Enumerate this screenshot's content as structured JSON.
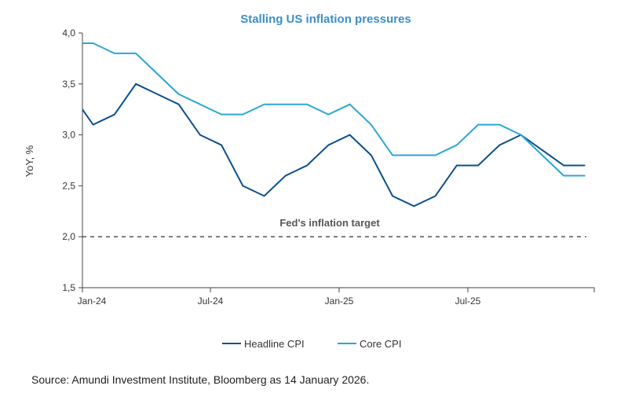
{
  "chart_data": {
    "type": "line",
    "title": "Stalling US inflation pressures",
    "ylabel": "YoY, %",
    "xlabel": "",
    "ylim": [
      1.5,
      4.0
    ],
    "yticks": [
      "1,5",
      "2,0",
      "2,5",
      "3,0",
      "3,5",
      "4,0"
    ],
    "xtick_labels": [
      "Jan-24",
      "Jul-24",
      "Jan-25",
      "Jul-25"
    ],
    "x": [
      "Dec-23",
      "Jan-24",
      "Feb-24",
      "Mar-24",
      "Apr-24",
      "May-24",
      "Jun-24",
      "Jul-24",
      "Aug-24",
      "Sep-24",
      "Oct-24",
      "Nov-24",
      "Dec-24",
      "Jan-25",
      "Feb-25",
      "Mar-25",
      "Apr-25",
      "May-25",
      "Jun-25",
      "Jul-25",
      "Aug-25",
      "Sep-25",
      "Oct-25",
      "Nov-25",
      "Dec-25"
    ],
    "series": [
      {
        "name": "Headline CPI",
        "color": "#0b4f8c",
        "values": [
          3.4,
          3.1,
          3.2,
          3.5,
          3.4,
          3.3,
          3.0,
          2.9,
          2.5,
          2.4,
          2.6,
          2.7,
          2.9,
          3.0,
          2.8,
          2.4,
          2.3,
          2.4,
          2.7,
          2.7,
          2.9,
          3.0,
          null,
          2.7,
          2.7
        ]
      },
      {
        "name": "Core CPI",
        "color": "#2aa6d6",
        "values": [
          3.9,
          3.9,
          3.8,
          3.8,
          3.6,
          3.4,
          3.3,
          3.2,
          3.2,
          3.3,
          3.3,
          3.3,
          3.2,
          3.3,
          3.1,
          2.8,
          2.8,
          2.8,
          2.9,
          3.1,
          3.1,
          3.0,
          null,
          2.6,
          2.6
        ]
      }
    ],
    "reference_line": {
      "value": 2.0,
      "label": "Fed's inflation target",
      "style": "dashed"
    },
    "grid": false,
    "legend": "bottom"
  },
  "source": "Source: Amundi Investment Institute,  Bloomberg as 14 January 2026."
}
